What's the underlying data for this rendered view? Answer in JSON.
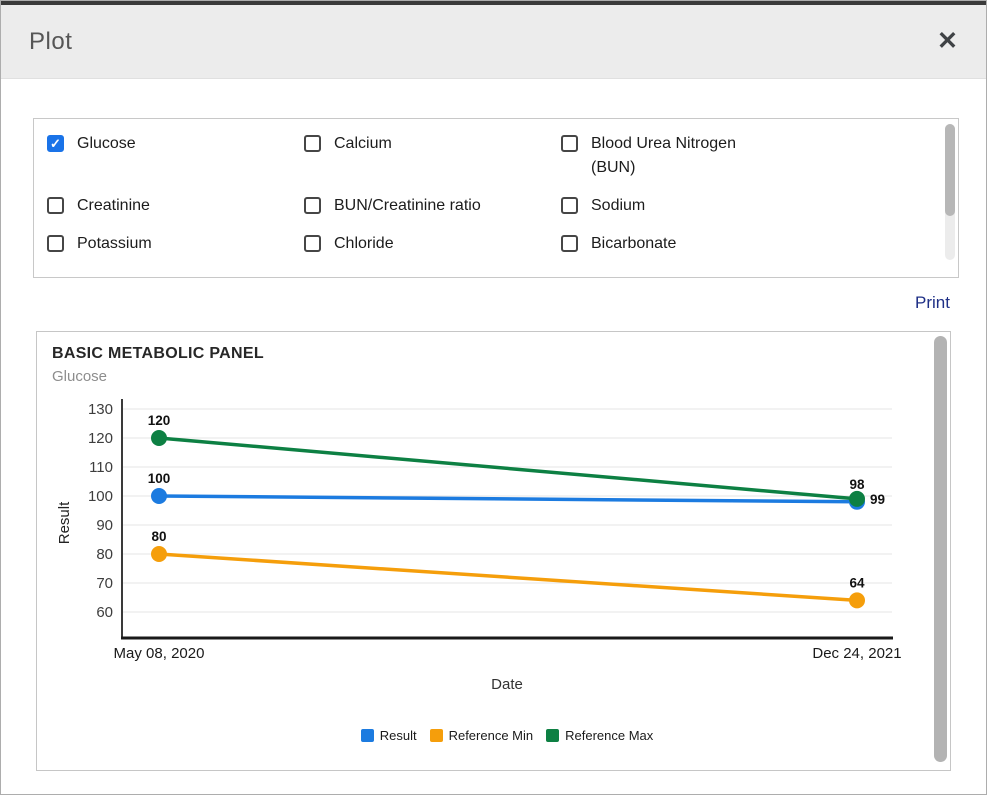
{
  "window": {
    "title": "Plot",
    "close_icon": "✕"
  },
  "colors": {
    "checkbox_accent": "#1a73e8",
    "print_link": "#1e2f86",
    "series_blue": "#1c7be0",
    "series_orange": "#f59e0b",
    "series_green": "#0d8043"
  },
  "checkboxes": {
    "items": [
      {
        "label": "Glucose",
        "checked": true
      },
      {
        "label": "Calcium",
        "checked": false
      },
      {
        "label": "Blood Urea Nitrogen (BUN)",
        "checked": false
      },
      {
        "label": "Creatinine",
        "checked": false
      },
      {
        "label": "BUN/Creatinine ratio",
        "checked": false
      },
      {
        "label": "Sodium",
        "checked": false
      },
      {
        "label": "Potassium",
        "checked": false
      },
      {
        "label": "Chloride",
        "checked": false
      },
      {
        "label": "Bicarbonate",
        "checked": false
      }
    ]
  },
  "actions": {
    "print_label": "Print"
  },
  "chart_data": {
    "type": "line",
    "title": "BASIC METABOLIC PANEL",
    "subtitle": "Glucose",
    "xlabel": "Date",
    "ylabel": "Result",
    "x_categories": [
      "May 08, 2020",
      "Dec 24, 2021"
    ],
    "y_ticks": [
      130,
      120,
      110,
      100,
      90,
      80,
      70,
      60
    ],
    "ylim": [
      55,
      132
    ],
    "grid": true,
    "legend_position": "bottom",
    "series": [
      {
        "name": "Result",
        "color": "#1c7be0",
        "values": [
          100,
          98
        ],
        "label_pos": [
          "top",
          "top"
        ]
      },
      {
        "name": "Reference Min",
        "color": "#f59e0b",
        "values": [
          80,
          64
        ],
        "label_pos": [
          "top",
          "top"
        ]
      },
      {
        "name": "Reference Max",
        "color": "#0d8043",
        "values": [
          120,
          99
        ],
        "label_pos": [
          "top",
          "right"
        ]
      }
    ]
  }
}
